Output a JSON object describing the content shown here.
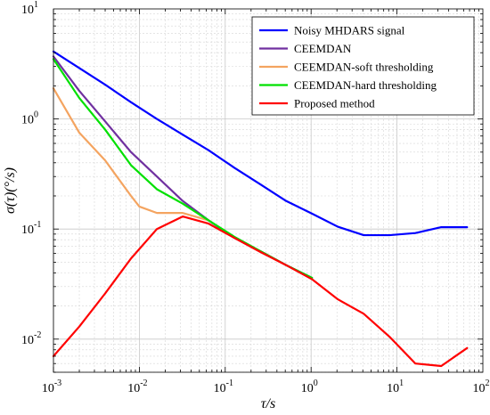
{
  "chart_data": {
    "type": "line",
    "title": "",
    "xlabel": "τ/s",
    "ylabel": "σ(τ)(°/s)",
    "xscale": "log",
    "yscale": "log",
    "xlim": [
      0.001,
      100
    ],
    "ylim": [
      0.005,
      10
    ],
    "grid": true,
    "legend_position": "top-right",
    "x_ticks": [
      {
        "base": "10",
        "exp": "-3"
      },
      {
        "base": "10",
        "exp": "-2"
      },
      {
        "base": "10",
        "exp": "-1"
      },
      {
        "base": "10",
        "exp": "0"
      },
      {
        "base": "10",
        "exp": "1"
      },
      {
        "base": "10",
        "exp": "2"
      }
    ],
    "y_ticks": [
      {
        "base": "10",
        "exp": "-2"
      },
      {
        "base": "10",
        "exp": "-1"
      },
      {
        "base": "10",
        "exp": "0"
      },
      {
        "base": "10",
        "exp": "1"
      }
    ],
    "x_tick_values": [
      0.001,
      0.01,
      0.1,
      1,
      10,
      100
    ],
    "y_tick_values": [
      0.01,
      0.1,
      1,
      10
    ],
    "series": [
      {
        "name": "Noisy MHDARS signal",
        "color": "#0000ff",
        "x": [
          0.001,
          0.002,
          0.004,
          0.008,
          0.016,
          0.032,
          0.064,
          0.128,
          0.256,
          0.512,
          1.024,
          2.048,
          4.096,
          8.192,
          16.384,
          32.768,
          65.536
        ],
        "y": [
          4.1,
          2.9,
          2.05,
          1.42,
          1.0,
          0.72,
          0.52,
          0.36,
          0.255,
          0.18,
          0.138,
          0.105,
          0.088,
          0.088,
          0.092,
          0.104,
          0.104
        ]
      },
      {
        "name": "CEEMDAN",
        "color": "#7030a0",
        "x": [
          0.001,
          0.002,
          0.004,
          0.008,
          0.016,
          0.032,
          0.064,
          0.128,
          0.256,
          0.512,
          1.024
        ],
        "y": [
          3.7,
          1.8,
          0.95,
          0.5,
          0.3,
          0.18,
          0.12,
          0.083,
          0.063,
          0.047,
          0.036
        ]
      },
      {
        "name": "CEEMDAN-soft thresholding",
        "color": "#f4a460",
        "x": [
          0.001,
          0.002,
          0.004,
          0.008,
          0.01,
          0.016,
          0.032,
          0.064
        ],
        "y": [
          1.9,
          0.75,
          0.42,
          0.2,
          0.16,
          0.14,
          0.14,
          0.12
        ]
      },
      {
        "name": "CEEMDAN-hard thresholding",
        "color": "#00e000",
        "x": [
          0.001,
          0.002,
          0.004,
          0.008,
          0.016,
          0.032,
          0.064,
          0.128,
          0.256,
          0.512,
          1.024
        ],
        "y": [
          3.5,
          1.55,
          0.8,
          0.38,
          0.23,
          0.17,
          0.12,
          0.085,
          0.063,
          0.047,
          0.036
        ]
      },
      {
        "name": "Proposed method",
        "color": "#ff0000",
        "x": [
          0.001,
          0.002,
          0.004,
          0.008,
          0.016,
          0.032,
          0.064,
          0.128,
          0.256,
          0.512,
          1.024,
          2.048,
          4.096,
          8.192,
          16.384,
          32.768,
          65.536
        ],
        "y": [
          0.007,
          0.013,
          0.026,
          0.054,
          0.1,
          0.13,
          0.112,
          0.083,
          0.062,
          0.047,
          0.035,
          0.023,
          0.017,
          0.0105,
          0.006,
          0.0057,
          0.0083
        ]
      }
    ]
  }
}
